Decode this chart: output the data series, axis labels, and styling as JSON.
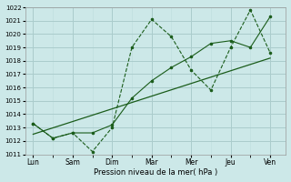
{
  "xlabel": "Pression niveau de la mer( hPa )",
  "ylim": [
    1011,
    1022
  ],
  "yticks": [
    1011,
    1012,
    1013,
    1014,
    1015,
    1016,
    1017,
    1018,
    1019,
    1020,
    1021,
    1022
  ],
  "x_labels": [
    "Lun",
    "Sam",
    "Dim",
    "Mar",
    "Mer",
    "Jeu",
    "Ven"
  ],
  "bg_color": "#cce8e8",
  "line_color": "#1a5c1a",
  "grid_major_color": "#aacccc",
  "grid_minor_color": "#c0dede",
  "line1_x": [
    0,
    0.5,
    1.0,
    1.5,
    2.0,
    2.5,
    3.0,
    3.5,
    4.0,
    4.5,
    5.0,
    5.5,
    6.0
  ],
  "line1_y": [
    1013.3,
    1012.2,
    1012.6,
    1011.2,
    1013.0,
    1019.0,
    1021.1,
    1019.8,
    1017.3,
    1015.8,
    1019.0,
    1021.8,
    1018.6
  ],
  "line2_x": [
    0,
    0.5,
    1.0,
    1.5,
    2.0,
    2.5,
    3.0,
    3.5,
    4.0,
    4.5,
    5.0,
    5.5,
    6.0
  ],
  "line2_y": [
    1013.3,
    1012.2,
    1012.6,
    1012.6,
    1013.2,
    1015.2,
    1016.5,
    1017.5,
    1018.3,
    1019.3,
    1019.5,
    1019.0,
    1021.3
  ],
  "line3_x": [
    0,
    6.0
  ],
  "line3_y": [
    1012.5,
    1018.2
  ],
  "xlim": [
    -0.2,
    6.4
  ]
}
